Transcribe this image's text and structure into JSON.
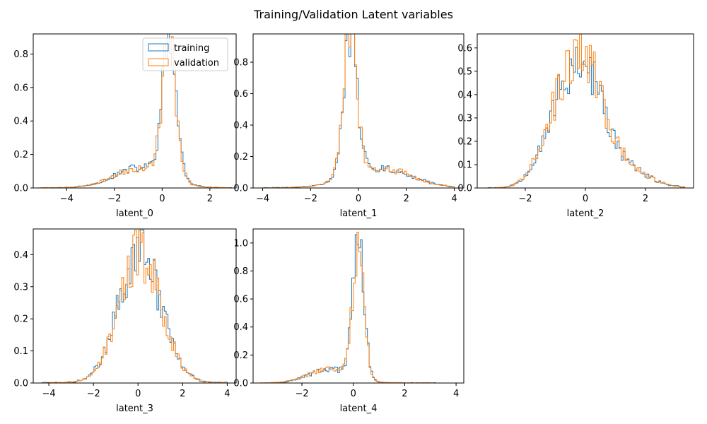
{
  "figure": {
    "title": "Training/Validation Latent variables",
    "colors": {
      "training": "#1f77b4",
      "validation": "#ff7f0e"
    },
    "legend": {
      "placement": "upper-right",
      "entries": [
        "training",
        "validation"
      ]
    }
  },
  "chart_data": [
    {
      "type": "step-histogram",
      "xlabel": "latent_0",
      "xlim": [
        -5.4,
        3.1
      ],
      "ylim": [
        0,
        0.92
      ],
      "xticks": [
        -4,
        -2,
        0,
        2
      ],
      "yticks": [
        0.0,
        0.2,
        0.4,
        0.6,
        0.8
      ],
      "show_legend": true,
      "series": [
        {
          "name": "training",
          "kind": "skewleft",
          "mu": 0.3,
          "sigma": 0.3,
          "peak": 0.8,
          "tail_w": 0.12,
          "tail_s": 1.1,
          "tail_shift": -1.2,
          "xmin": -5.2,
          "xmax": 2.9,
          "bins": 100,
          "seed": 11
        },
        {
          "name": "validation",
          "kind": "skewleft",
          "mu": 0.3,
          "sigma": 0.3,
          "peak": 0.78,
          "tail_w": 0.12,
          "tail_s": 1.1,
          "tail_shift": -1.2,
          "xmin": -5.2,
          "xmax": 2.9,
          "bins": 100,
          "seed": 23
        }
      ]
    },
    {
      "type": "step-histogram",
      "xlabel": "latent_1",
      "xlim": [
        -4.4,
        4.4
      ],
      "ylim": [
        0,
        0.98
      ],
      "xticks": [
        -4,
        -2,
        0,
        2,
        4
      ],
      "yticks": [
        0.0,
        0.2,
        0.4,
        0.6,
        0.8
      ],
      "show_legend": false,
      "series": [
        {
          "name": "training",
          "kind": "skewright",
          "mu": -0.35,
          "sigma": 0.28,
          "peak": 0.92,
          "tail_w": 0.13,
          "tail_s": 1.3,
          "tail_shift": 1.2,
          "xmin": -4.0,
          "xmax": 4.0,
          "bins": 100,
          "seed": 31
        },
        {
          "name": "validation",
          "kind": "skewright",
          "mu": -0.35,
          "sigma": 0.28,
          "peak": 0.9,
          "tail_w": 0.13,
          "tail_s": 1.3,
          "tail_shift": 1.2,
          "xmin": -4.0,
          "xmax": 4.0,
          "bins": 100,
          "seed": 47
        }
      ]
    },
    {
      "type": "step-histogram",
      "xlabel": "latent_2",
      "xlim": [
        -3.6,
        3.6
      ],
      "ylim": [
        0,
        0.66
      ],
      "xticks": [
        -2,
        0,
        2
      ],
      "yticks": [
        0.0,
        0.1,
        0.2,
        0.3,
        0.4,
        0.5,
        0.6
      ],
      "show_legend": false,
      "series": [
        {
          "name": "training",
          "kind": "bimodal",
          "mu": -0.1,
          "sigma": 0.6,
          "peak": 0.58,
          "tail_w": 0.0,
          "tail_s": 1.0,
          "tail_shift": 0,
          "xmin": -3.3,
          "xmax": 3.3,
          "bins": 100,
          "seed": 53
        },
        {
          "name": "validation",
          "kind": "bimodal",
          "mu": -0.1,
          "sigma": 0.6,
          "peak": 0.6,
          "tail_w": 0.0,
          "tail_s": 1.0,
          "tail_shift": 0,
          "xmin": -3.3,
          "xmax": 3.3,
          "bins": 100,
          "seed": 67
        }
      ]
    },
    {
      "type": "step-histogram",
      "xlabel": "latent_3",
      "xlim": [
        -4.7,
        4.4
      ],
      "ylim": [
        0,
        0.48
      ],
      "xticks": [
        -4,
        -2,
        0,
        2,
        4
      ],
      "yticks": [
        0.0,
        0.1,
        0.2,
        0.3,
        0.4
      ],
      "show_legend": false,
      "series": [
        {
          "name": "training",
          "kind": "normal",
          "mu": 0.1,
          "sigma": 0.95,
          "peak": 0.41,
          "tail_w": 0.0,
          "tail_s": 1.0,
          "tail_shift": 0,
          "xmin": -4.3,
          "xmax": 4.0,
          "bins": 100,
          "seed": 71
        },
        {
          "name": "validation",
          "kind": "normal",
          "mu": 0.1,
          "sigma": 0.95,
          "peak": 0.4,
          "tail_w": 0.0,
          "tail_s": 1.0,
          "tail_shift": 0,
          "xmin": -4.3,
          "xmax": 4.0,
          "bins": 100,
          "seed": 89
        }
      ]
    },
    {
      "type": "step-histogram",
      "xlabel": "latent_4",
      "xlim": [
        -3.9,
        4.3
      ],
      "ylim": [
        0,
        1.1
      ],
      "xticks": [
        -2,
        0,
        2,
        4
      ],
      "yticks": [
        0.0,
        0.2,
        0.4,
        0.6,
        0.8,
        1.0
      ],
      "show_legend": false,
      "series": [
        {
          "name": "training",
          "kind": "skewleft",
          "mu": 0.2,
          "sigma": 0.22,
          "peak": 1.02,
          "tail_w": 0.1,
          "tail_s": 0.8,
          "tail_shift": -1.1,
          "xmin": -3.6,
          "xmax": 3.2,
          "bins": 100,
          "seed": 97
        },
        {
          "name": "validation",
          "kind": "skewleft",
          "mu": 0.2,
          "sigma": 0.22,
          "peak": 1.0,
          "tail_w": 0.1,
          "tail_s": 0.8,
          "tail_shift": -1.1,
          "xmin": -3.6,
          "xmax": 3.2,
          "bins": 100,
          "seed": 103
        }
      ]
    }
  ]
}
